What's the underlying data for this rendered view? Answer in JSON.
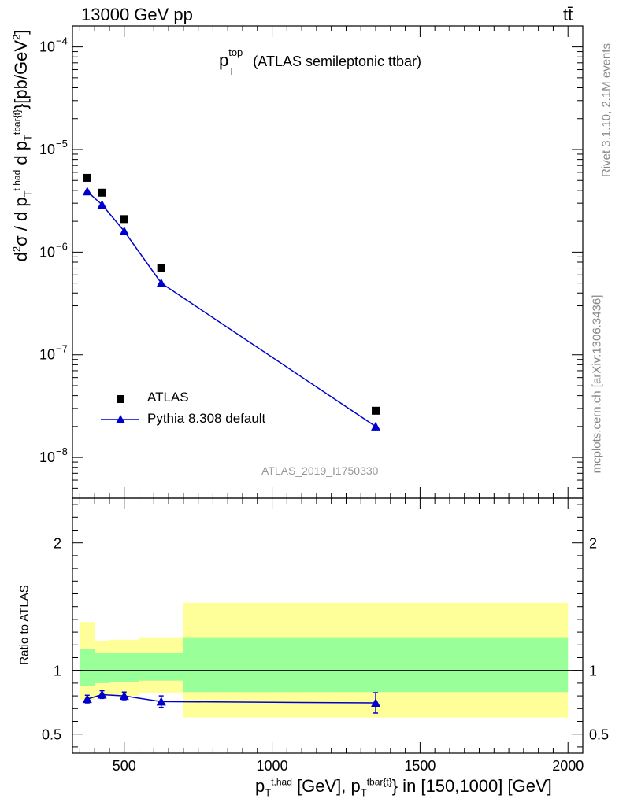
{
  "header": {
    "left": "13000 GeV pp",
    "right": "tt̄"
  },
  "main_title": "p_T^top (ATLAS semileptonic ttbar)",
  "main_title_text": "(ATLAS semileptonic ttbar)",
  "ylabel_main": "d²σ / d p_T^{t,had} d p_T^{tbar{t}} [pb/GeV²]",
  "ylabel_ratio": "Ratio to ATLAS",
  "xlabel": "p_T^{t,had} [GeV], p_T^{tbar{t}} in [150,1000] [GeV]",
  "side_text_top": "Rivet 3.1.10,  2.1M events",
  "side_text_bottom": "mcplots.cern.ch [arXiv:1306.3436]",
  "analysis_label": "ATLAS_2019_I1750330",
  "colors": {
    "mc": "#0000cc",
    "band_inner": "#99ff99",
    "band_outer": "#ffff99",
    "data": "#000000"
  },
  "chart_data": [
    {
      "type": "scatter",
      "title": "p_T^top (ATLAS semileptonic ttbar)",
      "yscale": "log",
      "ylim": [
        4e-09,
        0.00016
      ],
      "xlim": [
        325,
        2050
      ],
      "ytick_labels": [
        "10^{-8}",
        "10^{-7}",
        "10^{-6}",
        "10^{-5}",
        "10^{-4}"
      ],
      "legend": [
        "ATLAS",
        "Pythia 8.308 default"
      ],
      "legend_position": "lower-left",
      "series": [
        {
          "name": "ATLAS",
          "marker": "square",
          "x": [
            375,
            425,
            500,
            625,
            1350
          ],
          "y": [
            5.3e-06,
            3.8e-06,
            2.1e-06,
            7e-07,
            2.85e-08
          ]
        },
        {
          "name": "Pythia 8.308 default",
          "marker": "triangle",
          "x": [
            375,
            425,
            500,
            625,
            1350
          ],
          "y": [
            3.9e-06,
            2.9e-06,
            1.6e-06,
            5e-07,
            2e-08
          ],
          "yerr": [
            5e-08,
            4e-08,
            3e-08,
            1.2e-08,
            2e-09
          ]
        }
      ]
    },
    {
      "type": "line",
      "ylabel": "Ratio to ATLAS",
      "ylim": [
        0.35,
        2.35
      ],
      "xlim": [
        325,
        2050
      ],
      "xticks": [
        500,
        1000,
        1500,
        2000
      ],
      "xtick_labels": [
        "500",
        "1000",
        "1500",
        "2000"
      ],
      "yticks": [
        0.5,
        1,
        2
      ],
      "ytick_labels": [
        "0.5",
        "1",
        "2"
      ],
      "bands": [
        {
          "xlo": 350,
          "xhi": 400,
          "inner": [
            0.88,
            1.17
          ],
          "outer": [
            0.77,
            1.38
          ]
        },
        {
          "xlo": 400,
          "xhi": 450,
          "inner": [
            0.9,
            1.14
          ],
          "outer": [
            0.8,
            1.23
          ]
        },
        {
          "xlo": 450,
          "xhi": 550,
          "inner": [
            0.91,
            1.14
          ],
          "outer": [
            0.8,
            1.24
          ]
        },
        {
          "xlo": 550,
          "xhi": 700,
          "inner": [
            0.92,
            1.14
          ],
          "outer": [
            0.82,
            1.26
          ]
        },
        {
          "xlo": 700,
          "xhi": 2000,
          "inner": [
            0.83,
            1.26
          ],
          "outer": [
            0.63,
            1.53
          ]
        }
      ],
      "series": [
        {
          "name": "Pythia 8.308 default",
          "x": [
            375,
            425,
            500,
            625,
            1350
          ],
          "y": [
            0.775,
            0.81,
            0.8,
            0.755,
            0.745
          ],
          "yerr": [
            0.03,
            0.03,
            0.03,
            0.045,
            0.08
          ]
        }
      ]
    }
  ]
}
